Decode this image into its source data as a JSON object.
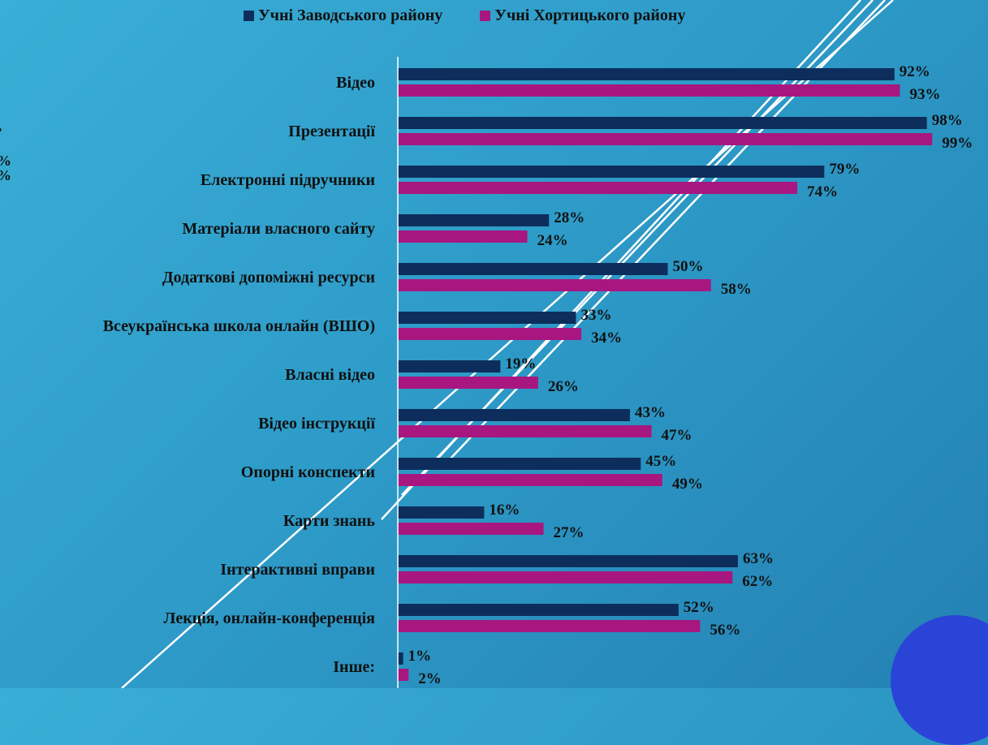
{
  "legend": {
    "series_a": "Учні Заводського району",
    "series_b": "Учні Хортицького району"
  },
  "edge_fragments": [
    "•",
    "%",
    "%"
  ],
  "colors": {
    "series_a": "#0d2e5c",
    "series_b": "#a8177f",
    "axis": "#ffffff",
    "text": "#111111"
  },
  "chart_data": {
    "type": "bar",
    "orientation": "horizontal",
    "categories": [
      "Відео",
      "Презентації",
      "Електронні підручники",
      "Матеріали власного сайту",
      "Додаткові допоміжні ресурси",
      "Всеукраїнська школа онлайн (ВШО)",
      "Власні відео",
      "Відео інструкції",
      "Опорні конспекти",
      "Карти знань",
      "Інтерактивні вправи",
      "Лекція, онлайн-конференція",
      "Інше:"
    ],
    "series": [
      {
        "name": "Учні Заводського району",
        "values": [
          92,
          98,
          79,
          28,
          50,
          33,
          19,
          43,
          45,
          16,
          63,
          52,
          1
        ]
      },
      {
        "name": "Учні Хортицького району",
        "values": [
          93,
          99,
          74,
          24,
          58,
          34,
          26,
          47,
          49,
          27,
          62,
          56,
          2
        ]
      }
    ],
    "value_suffix": "%",
    "xlim": [
      0,
      100
    ],
    "legend_position": "top",
    "grid": false
  }
}
